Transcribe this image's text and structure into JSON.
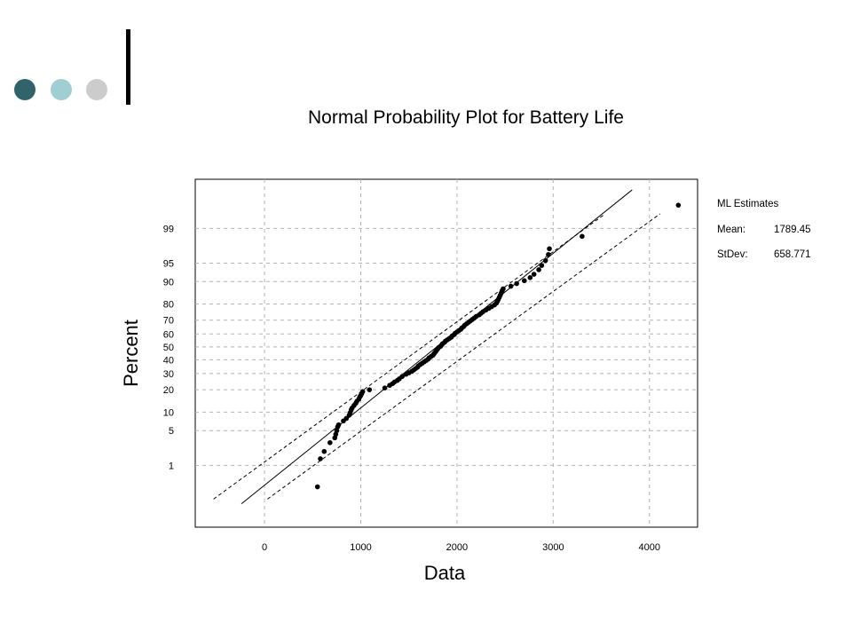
{
  "decor": {
    "dot_colors": [
      "#30636a",
      "#a0cfd3",
      "#cccccc"
    ],
    "bar_color": "#000000"
  },
  "chart_data": {
    "type": "scatter",
    "title": "Normal Probability Plot for Battery Life",
    "xlabel": "Data",
    "ylabel": "Percent",
    "xlim": [
      -720,
      4500
    ],
    "ylim": [
      0.02,
      99.95
    ],
    "y_scale": "normal-probability",
    "grid": true,
    "x_ticks": [
      0,
      1000,
      2000,
      3000,
      4000
    ],
    "y_ticks": [
      1,
      5,
      10,
      20,
      30,
      40,
      50,
      60,
      70,
      80,
      90,
      95,
      99
    ],
    "stats": {
      "heading": "ML Estimates",
      "mean_label": "Mean:",
      "mean_value": "1789.45",
      "stdev_label": "StDev:",
      "stdev_value": "658.771"
    },
    "fit_line": {
      "mean": 1789.45,
      "stdev": 658.771,
      "x_range": [
        -240,
        3820
      ]
    },
    "confidence_bands": {
      "upper": [
        [
          -530,
          0.14
        ],
        [
          3540,
          99.55
        ]
      ],
      "lower": [
        [
          30,
          0.14
        ],
        [
          4110,
          99.55
        ]
      ]
    },
    "points": [
      [
        550,
        0.3
      ],
      [
        580,
        1.4
      ],
      [
        620,
        2.0
      ],
      [
        680,
        3.0
      ],
      [
        730,
        3.7
      ],
      [
        740,
        4.3
      ],
      [
        750,
        5.0
      ],
      [
        760,
        5.8
      ],
      [
        770,
        6.3
      ],
      [
        820,
        7.3
      ],
      [
        850,
        8.0
      ],
      [
        880,
        9.0
      ],
      [
        890,
        9.8
      ],
      [
        900,
        10.8
      ],
      [
        910,
        11.5
      ],
      [
        930,
        12.5
      ],
      [
        950,
        13.5
      ],
      [
        960,
        14.3
      ],
      [
        980,
        15.3
      ],
      [
        990,
        16.3
      ],
      [
        1000,
        17.0
      ],
      [
        1010,
        18.0
      ],
      [
        1020,
        19.0
      ],
      [
        1090,
        20.0
      ],
      [
        1250,
        21.0
      ],
      [
        1300,
        22.5
      ],
      [
        1330,
        23.5
      ],
      [
        1350,
        24.5
      ],
      [
        1380,
        25.5
      ],
      [
        1400,
        26.5
      ],
      [
        1430,
        28.0
      ],
      [
        1470,
        29.5
      ],
      [
        1500,
        30.5
      ],
      [
        1530,
        31.5
      ],
      [
        1550,
        32.5
      ],
      [
        1570,
        33.5
      ],
      [
        1590,
        34.5
      ],
      [
        1600,
        35.5
      ],
      [
        1620,
        36.5
      ],
      [
        1640,
        37.5
      ],
      [
        1660,
        38.5
      ],
      [
        1680,
        39.5
      ],
      [
        1700,
        40.5
      ],
      [
        1710,
        41.5
      ],
      [
        1730,
        42.5
      ],
      [
        1750,
        43.5
      ],
      [
        1760,
        44.5
      ],
      [
        1770,
        45.5
      ],
      [
        1780,
        46.5
      ],
      [
        1790,
        47.5
      ],
      [
        1800,
        48.5
      ],
      [
        1810,
        49.5
      ],
      [
        1830,
        50.5
      ],
      [
        1840,
        51.5
      ],
      [
        1850,
        52.5
      ],
      [
        1870,
        53.5
      ],
      [
        1880,
        54.5
      ],
      [
        1900,
        55.5
      ],
      [
        1920,
        56.5
      ],
      [
        1940,
        57.5
      ],
      [
        1950,
        58.5
      ],
      [
        1970,
        59.5
      ],
      [
        1980,
        60.5
      ],
      [
        2000,
        61.5
      ],
      [
        2020,
        62.5
      ],
      [
        2040,
        63.5
      ],
      [
        2050,
        64.5
      ],
      [
        2070,
        65.5
      ],
      [
        2080,
        66.5
      ],
      [
        2100,
        67.5
      ],
      [
        2120,
        68.5
      ],
      [
        2140,
        69.5
      ],
      [
        2160,
        70.5
      ],
      [
        2180,
        71.5
      ],
      [
        2200,
        72.5
      ],
      [
        2230,
        73.5
      ],
      [
        2250,
        74.5
      ],
      [
        2270,
        75.5
      ],
      [
        2300,
        76.5
      ],
      [
        2330,
        77.5
      ],
      [
        2360,
        78.5
      ],
      [
        2390,
        79.5
      ],
      [
        2410,
        80.5
      ],
      [
        2420,
        81.5
      ],
      [
        2430,
        82.5
      ],
      [
        2440,
        83.5
      ],
      [
        2450,
        84.5
      ],
      [
        2460,
        85.5
      ],
      [
        2470,
        86.5
      ],
      [
        2480,
        87.3
      ],
      [
        2560,
        88.3
      ],
      [
        2620,
        89.3
      ],
      [
        2700,
        90.3
      ],
      [
        2760,
        91.3
      ],
      [
        2800,
        92.3
      ],
      [
        2850,
        93.5
      ],
      [
        2880,
        94.5
      ],
      [
        2920,
        95.5
      ],
      [
        2950,
        96.5
      ],
      [
        2960,
        97.3
      ],
      [
        3300,
        98.5
      ],
      [
        4300,
        99.73
      ]
    ]
  }
}
